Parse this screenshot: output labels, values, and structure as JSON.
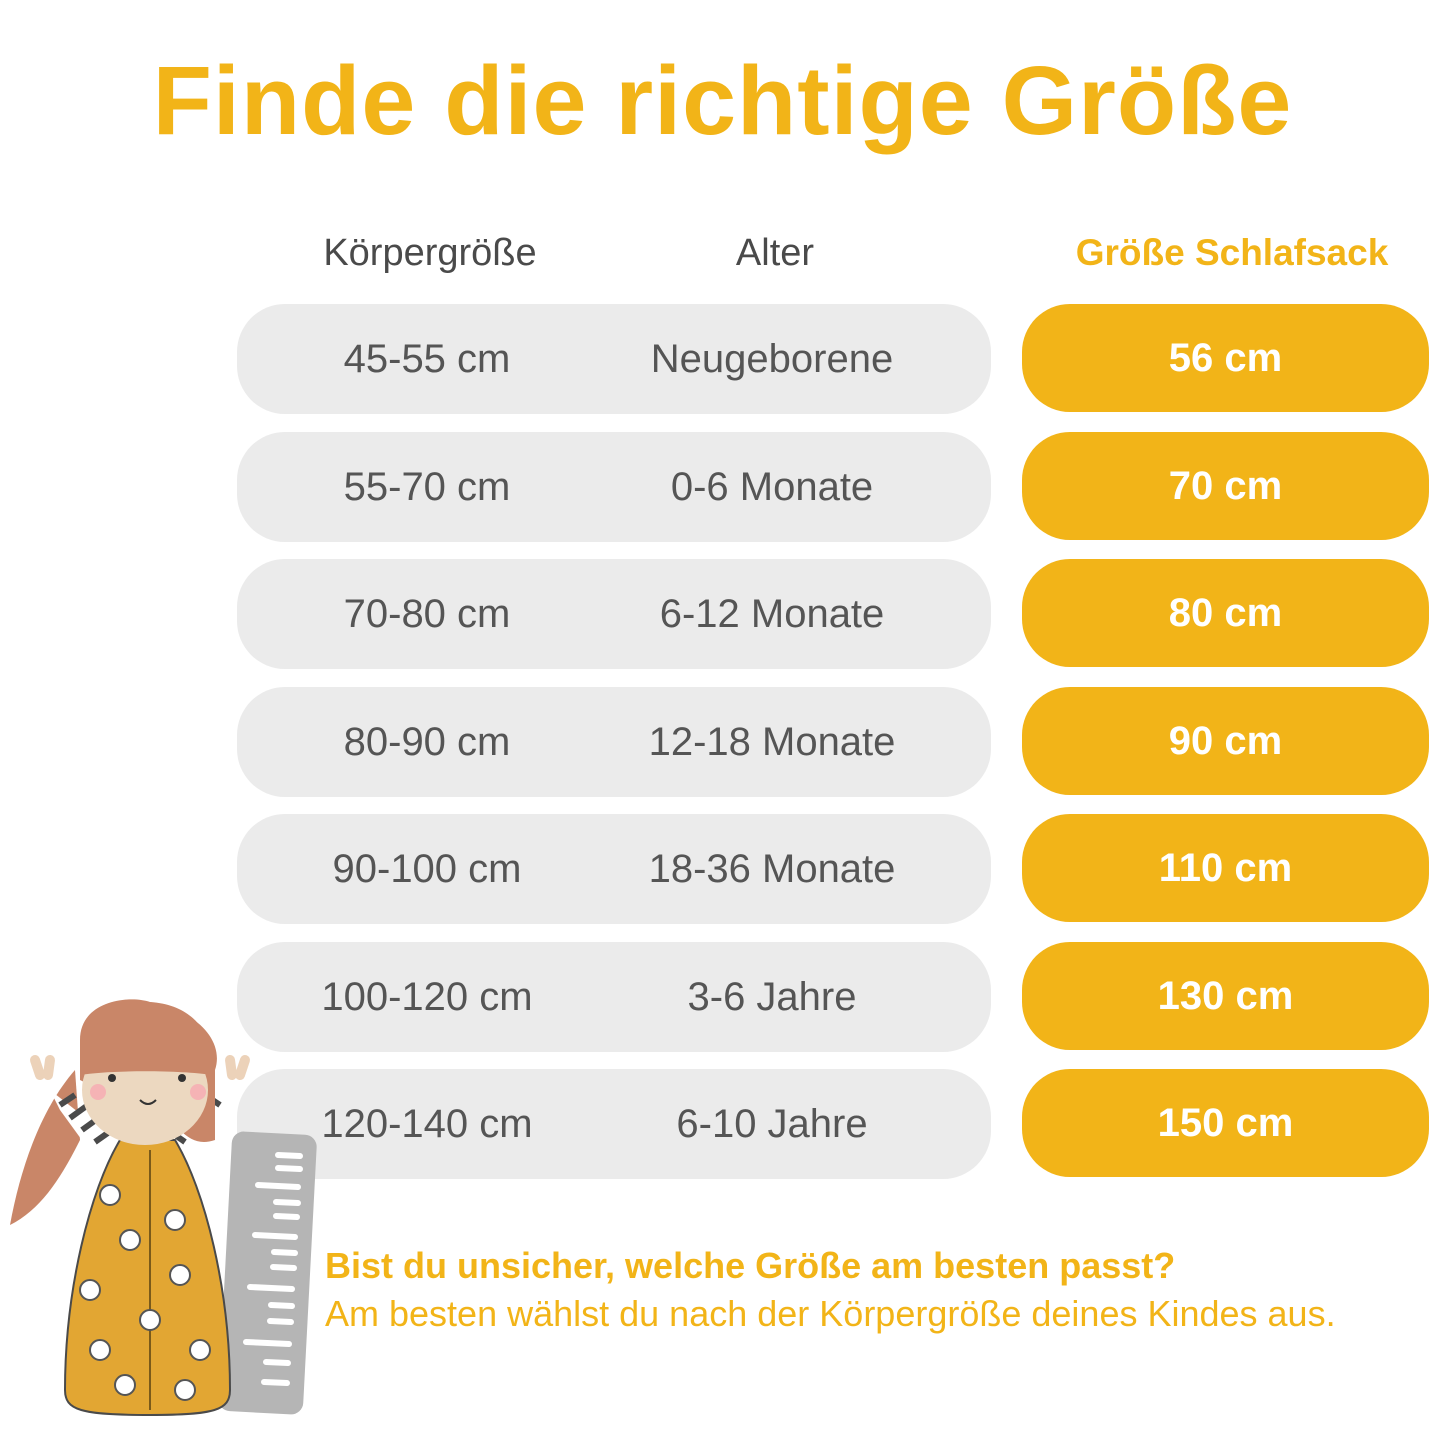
{
  "title": "Finde die richtige Größe",
  "headers": {
    "height": "Körpergröße",
    "age": "Alter",
    "size": "Größe Schlafsack"
  },
  "rows": [
    {
      "height": "45-55 cm",
      "age": "Neugeborene",
      "size": "56 cm"
    },
    {
      "height": "55-70 cm",
      "age": "0-6 Monate",
      "size": "70 cm"
    },
    {
      "height": "70-80 cm",
      "age": "6-12 Monate",
      "size": "80 cm"
    },
    {
      "height": "80-90 cm",
      "age": "12-18 Monate",
      "size": "90 cm"
    },
    {
      "height": "90-100 cm",
      "age": "18-36 Monate",
      "size": "110 cm"
    },
    {
      "height": "100-120 cm",
      "age": "3-6 Jahre",
      "size": "130 cm"
    },
    {
      "height": "120-140 cm",
      "age": "6-10 Jahre",
      "size": "150 cm"
    }
  ],
  "footer": {
    "question": "Bist du unsicher, welche Größe am besten passt?",
    "answer": "Am besten wählst du nach der Körpergröße deines Kindes aus."
  },
  "colors": {
    "accent": "#f2b418",
    "row_bg": "#ebebeb",
    "text": "#555555"
  }
}
